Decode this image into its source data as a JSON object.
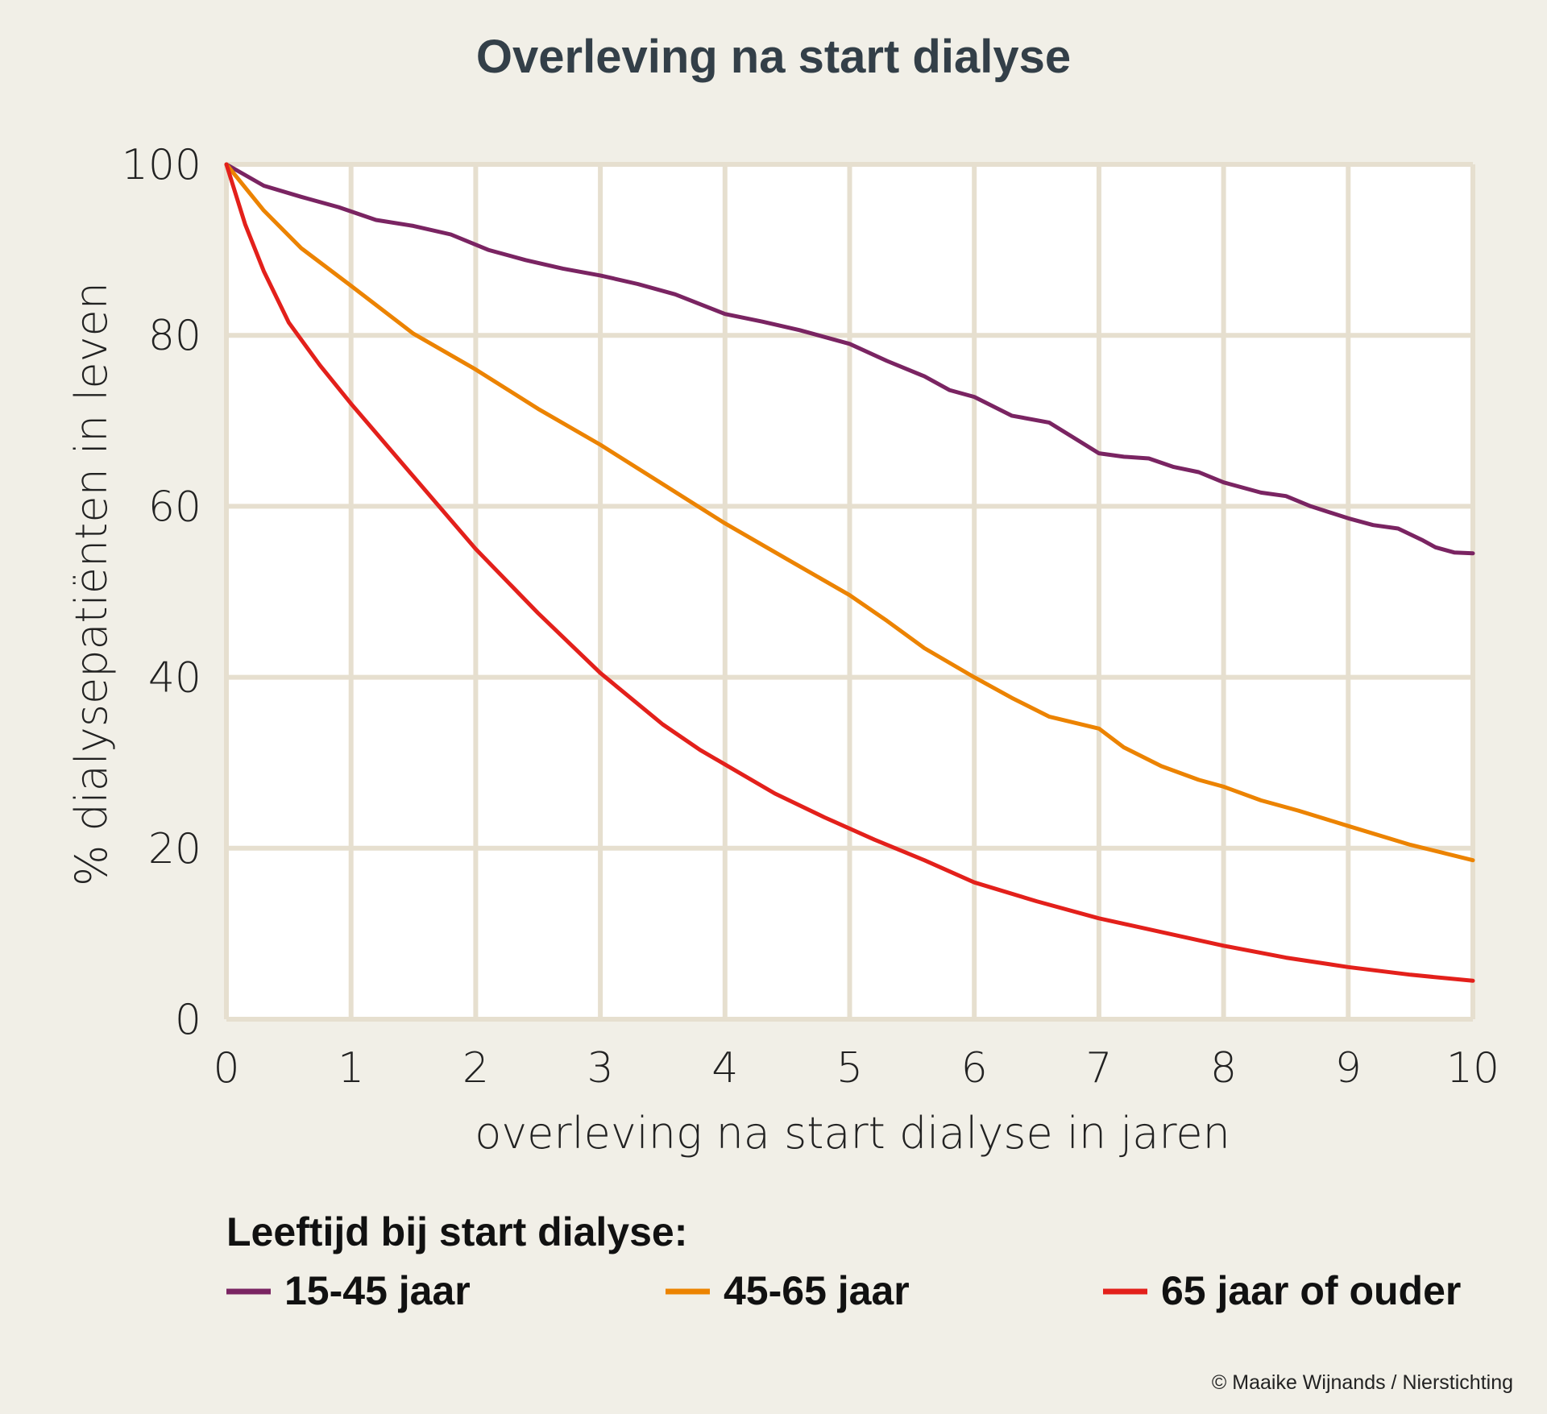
{
  "colors": {
    "background": "#f1efe7",
    "plot_background": "#ffffff",
    "grid": "#e6dfcf",
    "title": "#333f48"
  },
  "chart_data": {
    "type": "line",
    "title": "Overleving na start dialyse",
    "xlabel": "overleving na start dialyse in jaren",
    "ylabel": "% dialysepatiënten in leven",
    "xlim": [
      0,
      10
    ],
    "ylim": [
      0,
      100
    ],
    "xticks": [
      "0",
      "1",
      "2",
      "3",
      "4",
      "5",
      "6",
      "7",
      "8",
      "9",
      "10"
    ],
    "yticks": [
      "0",
      "20",
      "40",
      "60",
      "80",
      "100"
    ],
    "grid": true,
    "legend": {
      "title": "Leeftijd bij start dialyse:",
      "position": "bottom"
    },
    "series": [
      {
        "name": "15-45 jaar",
        "color": "#7a2462",
        "points": [
          [
            0,
            100
          ],
          [
            0.3,
            97.5
          ],
          [
            0.6,
            96.2
          ],
          [
            0.9,
            95
          ],
          [
            1.2,
            93.5
          ],
          [
            1.5,
            92.8
          ],
          [
            1.8,
            91.8
          ],
          [
            2.1,
            90
          ],
          [
            2.4,
            88.8
          ],
          [
            2.7,
            87.8
          ],
          [
            3.0,
            87
          ],
          [
            3.3,
            86
          ],
          [
            3.6,
            84.8
          ],
          [
            4.0,
            82.5
          ],
          [
            4.3,
            81.6
          ],
          [
            4.6,
            80.6
          ],
          [
            5.0,
            79
          ],
          [
            5.3,
            77
          ],
          [
            5.6,
            75.2
          ],
          [
            5.8,
            73.6
          ],
          [
            6.0,
            72.8
          ],
          [
            6.3,
            70.6
          ],
          [
            6.6,
            69.8
          ],
          [
            6.8,
            68
          ],
          [
            7.0,
            66.2
          ],
          [
            7.2,
            65.8
          ],
          [
            7.4,
            65.6
          ],
          [
            7.6,
            64.6
          ],
          [
            7.8,
            64
          ],
          [
            8.0,
            62.8
          ],
          [
            8.3,
            61.6
          ],
          [
            8.5,
            61.2
          ],
          [
            8.7,
            60
          ],
          [
            9.0,
            58.6
          ],
          [
            9.2,
            57.8
          ],
          [
            9.4,
            57.4
          ],
          [
            9.6,
            56
          ],
          [
            9.7,
            55.2
          ],
          [
            9.85,
            54.6
          ],
          [
            10,
            54.5
          ]
        ]
      },
      {
        "name": "45-65 jaar",
        "color": "#ec8300",
        "points": [
          [
            0,
            100
          ],
          [
            0.3,
            94.6
          ],
          [
            0.6,
            90.2
          ],
          [
            1.0,
            85.8
          ],
          [
            1.5,
            80.2
          ],
          [
            2.0,
            76
          ],
          [
            2.5,
            71.4
          ],
          [
            3.0,
            67.2
          ],
          [
            3.5,
            62.6
          ],
          [
            4.0,
            58
          ],
          [
            4.5,
            53.8
          ],
          [
            5.0,
            49.6
          ],
          [
            5.3,
            46.6
          ],
          [
            5.6,
            43.4
          ],
          [
            6.0,
            40
          ],
          [
            6.3,
            37.6
          ],
          [
            6.6,
            35.4
          ],
          [
            7.0,
            34
          ],
          [
            7.2,
            31.8
          ],
          [
            7.5,
            29.6
          ],
          [
            7.8,
            28
          ],
          [
            8.0,
            27.2
          ],
          [
            8.3,
            25.6
          ],
          [
            8.6,
            24.4
          ],
          [
            9.0,
            22.6
          ],
          [
            9.5,
            20.4
          ],
          [
            10,
            18.6
          ]
        ]
      },
      {
        "name": "65 jaar of ouder",
        "color": "#e3201b",
        "points": [
          [
            0,
            100
          ],
          [
            0.15,
            93
          ],
          [
            0.3,
            87.5
          ],
          [
            0.5,
            81.5
          ],
          [
            0.75,
            76.5
          ],
          [
            1.0,
            72
          ],
          [
            1.5,
            63.5
          ],
          [
            2.0,
            55
          ],
          [
            2.5,
            47.5
          ],
          [
            3.0,
            40.5
          ],
          [
            3.5,
            34.5
          ],
          [
            3.8,
            31.5
          ],
          [
            4.0,
            29.8
          ],
          [
            4.4,
            26.4
          ],
          [
            4.8,
            23.6
          ],
          [
            5.2,
            21
          ],
          [
            5.6,
            18.6
          ],
          [
            6.0,
            16
          ],
          [
            6.5,
            13.8
          ],
          [
            7.0,
            11.8
          ],
          [
            7.5,
            10.2
          ],
          [
            8.0,
            8.6
          ],
          [
            8.5,
            7.2
          ],
          [
            9.0,
            6.1
          ],
          [
            9.5,
            5.2
          ],
          [
            10,
            4.5
          ]
        ]
      }
    ]
  },
  "footer": {
    "credit": "© Maaike Wijnands / Nierstichting"
  }
}
